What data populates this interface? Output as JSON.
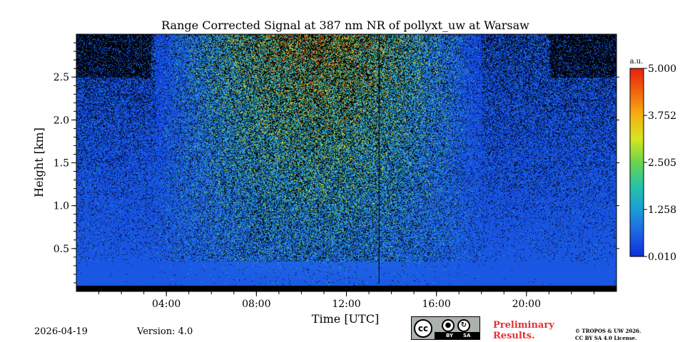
{
  "chart_data": {
    "type": "heatmap",
    "title": "Range Corrected Signal at 387 nm NR of pollyxt_uw at Warsaw",
    "xlabel": "Time [UTC]",
    "ylabel": "Height [km]",
    "xlim_hours": [
      0,
      24
    ],
    "ylim_km": [
      0,
      3.0
    ],
    "x_ticks": [
      {
        "value": 4,
        "label": "04:00"
      },
      {
        "value": 8,
        "label": "08:00"
      },
      {
        "value": 12,
        "label": "12:00"
      },
      {
        "value": 16,
        "label": "16:00"
      },
      {
        "value": 20,
        "label": "20:00"
      }
    ],
    "y_ticks": [
      {
        "value": 0.5,
        "label": "0.5"
      },
      {
        "value": 1.0,
        "label": "1.0"
      },
      {
        "value": 1.5,
        "label": "1.5"
      },
      {
        "value": 2.0,
        "label": "2.0"
      },
      {
        "value": 2.5,
        "label": "2.5"
      }
    ],
    "colorbar": {
      "unit": "a.u.",
      "range": [
        0.01,
        5.0
      ],
      "ticks": [
        {
          "value": 5.0,
          "label": "5.000"
        },
        {
          "value": 3.752,
          "label": "3.752"
        },
        {
          "value": 2.505,
          "label": "2.505"
        },
        {
          "value": 1.258,
          "label": "1.258"
        },
        {
          "value": 0.01,
          "label": "0.010"
        }
      ],
      "colors": [
        "#0b2fd8",
        "#1e63e6",
        "#1a9ed6",
        "#27c3a6",
        "#6ad44f",
        "#d6e51f",
        "#f5b212",
        "#f36410",
        "#e8210d"
      ]
    },
    "annotations": {
      "gap_line_hour": 13.45,
      "surface_band_km": 0.07
    }
  },
  "footer": {
    "date": "2026-04-19",
    "version": "Version: 4.0",
    "preliminary_line1": "Preliminary",
    "preliminary_line2": "Results.",
    "license_line1": "© TROPOS & UW 2026.",
    "license_line2": "CC BY SA 4.0 License.",
    "cc_mark": "cc",
    "cc_by": "BY",
    "cc_sa": "SA"
  }
}
